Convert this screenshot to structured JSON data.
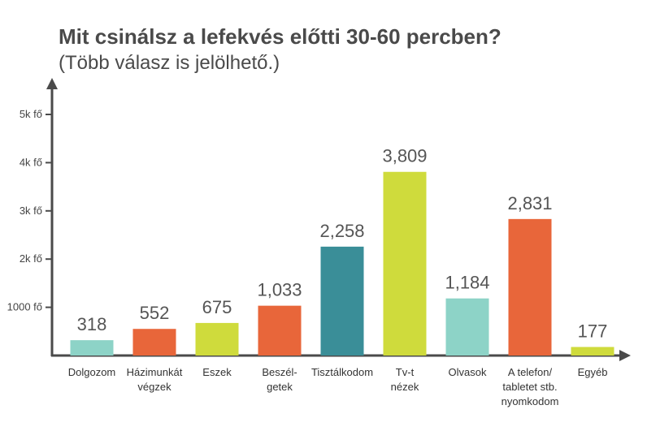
{
  "chart_data": {
    "type": "bar",
    "title": "Mit csinálsz a lefekvés előtti 30-60 percben?",
    "subtitle": "(Több válasz is jelölhető.)",
    "categories": [
      [
        "Dolgozom"
      ],
      [
        "Házimunkát",
        "végzek"
      ],
      [
        "Eszek"
      ],
      [
        "Beszél-",
        "getek"
      ],
      [
        "Tisztálkodom"
      ],
      [
        "Tv-t",
        "nézek"
      ],
      [
        "Olvasok"
      ],
      [
        "A telefon/",
        "tabletet stb.",
        "nyomkodom"
      ],
      [
        "Egyéb"
      ]
    ],
    "values": [
      318,
      552,
      675,
      1033,
      2258,
      3809,
      1184,
      2831,
      177
    ],
    "value_labels": [
      "318",
      "552",
      "675",
      "1,033",
      "2,258",
      "3,809",
      "1,184",
      "2,831",
      "177"
    ],
    "colors": [
      "#8dd3c7",
      "#e8663a",
      "#cfdb3c",
      "#e8663a",
      "#3a8e98",
      "#cfdb3c",
      "#8dd3c7",
      "#e8663a",
      "#cfdb3c"
    ],
    "yticks": [
      1000,
      2000,
      3000,
      4000,
      5000
    ],
    "ytick_labels": [
      "1000 fő",
      "2k fő",
      "3k fő",
      "4k fő",
      "5k fő"
    ],
    "ylim": [
      0,
      5500
    ],
    "xlabel": "",
    "ylabel": "",
    "grid": false,
    "axis_color": "#4a4a4a"
  }
}
